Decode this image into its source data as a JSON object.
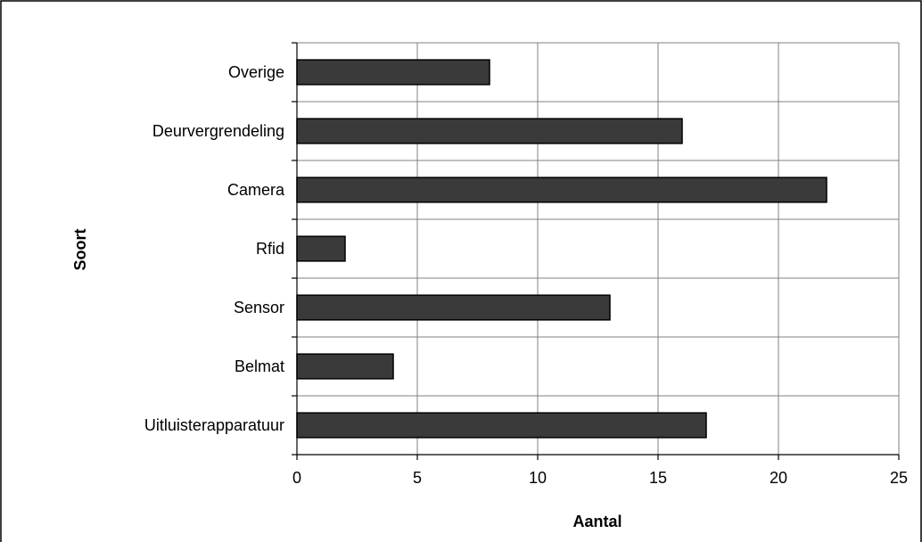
{
  "chart_data": {
    "type": "bar",
    "orientation": "horizontal",
    "categories": [
      "Overige",
      "Deurvergrendeling",
      "Camera",
      "Rfid",
      "Sensor",
      "Belmat",
      "Uitluisterapparatuur"
    ],
    "values": [
      8,
      16,
      22,
      2,
      13,
      4,
      17
    ],
    "xlabel": "Aantal",
    "ylabel": "Soort",
    "xlim": [
      0,
      25
    ],
    "xticks": [
      0,
      5,
      10,
      15,
      20,
      25
    ],
    "grid": {
      "vertical": true,
      "horizontal": true
    },
    "legend": "none",
    "colors": {
      "bar": "#3a3a3a",
      "grid": "#808080",
      "background": "#ffffff"
    }
  }
}
